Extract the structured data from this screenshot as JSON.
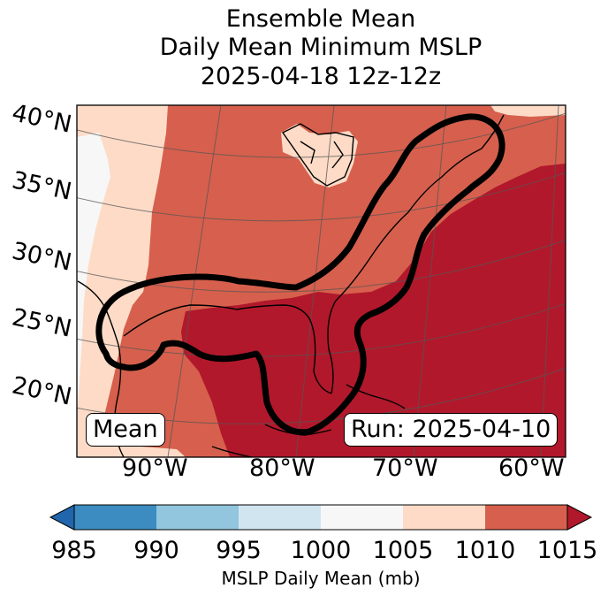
{
  "title": {
    "line1": "Ensemble Mean",
    "line2": "Daily Mean Minimum MSLP",
    "line3": "2025-04-18 12z-12z"
  },
  "map": {
    "lat_labels": [
      "40°N",
      "35°N",
      "30°N",
      "25°N",
      "20°N"
    ],
    "lon_labels": [
      "90°W",
      "80°W",
      "70°W",
      "60°W"
    ],
    "left_badge": "Mean",
    "right_badge": "Run: 2025-04-10",
    "palette": {
      "c985": "#3d8cc1",
      "c990": "#92c5de",
      "c995": "#d1e5f0",
      "c1000": "#f7f7f7",
      "c1005": "#fddbc7",
      "c1010": "#d6604d",
      "c1015": "#b2182b"
    }
  },
  "colorbar": {
    "ticks": [
      "985",
      "990",
      "995",
      "1000",
      "1005",
      "1010",
      "1015"
    ],
    "label": "MSLP Daily Mean (mb)"
  }
}
